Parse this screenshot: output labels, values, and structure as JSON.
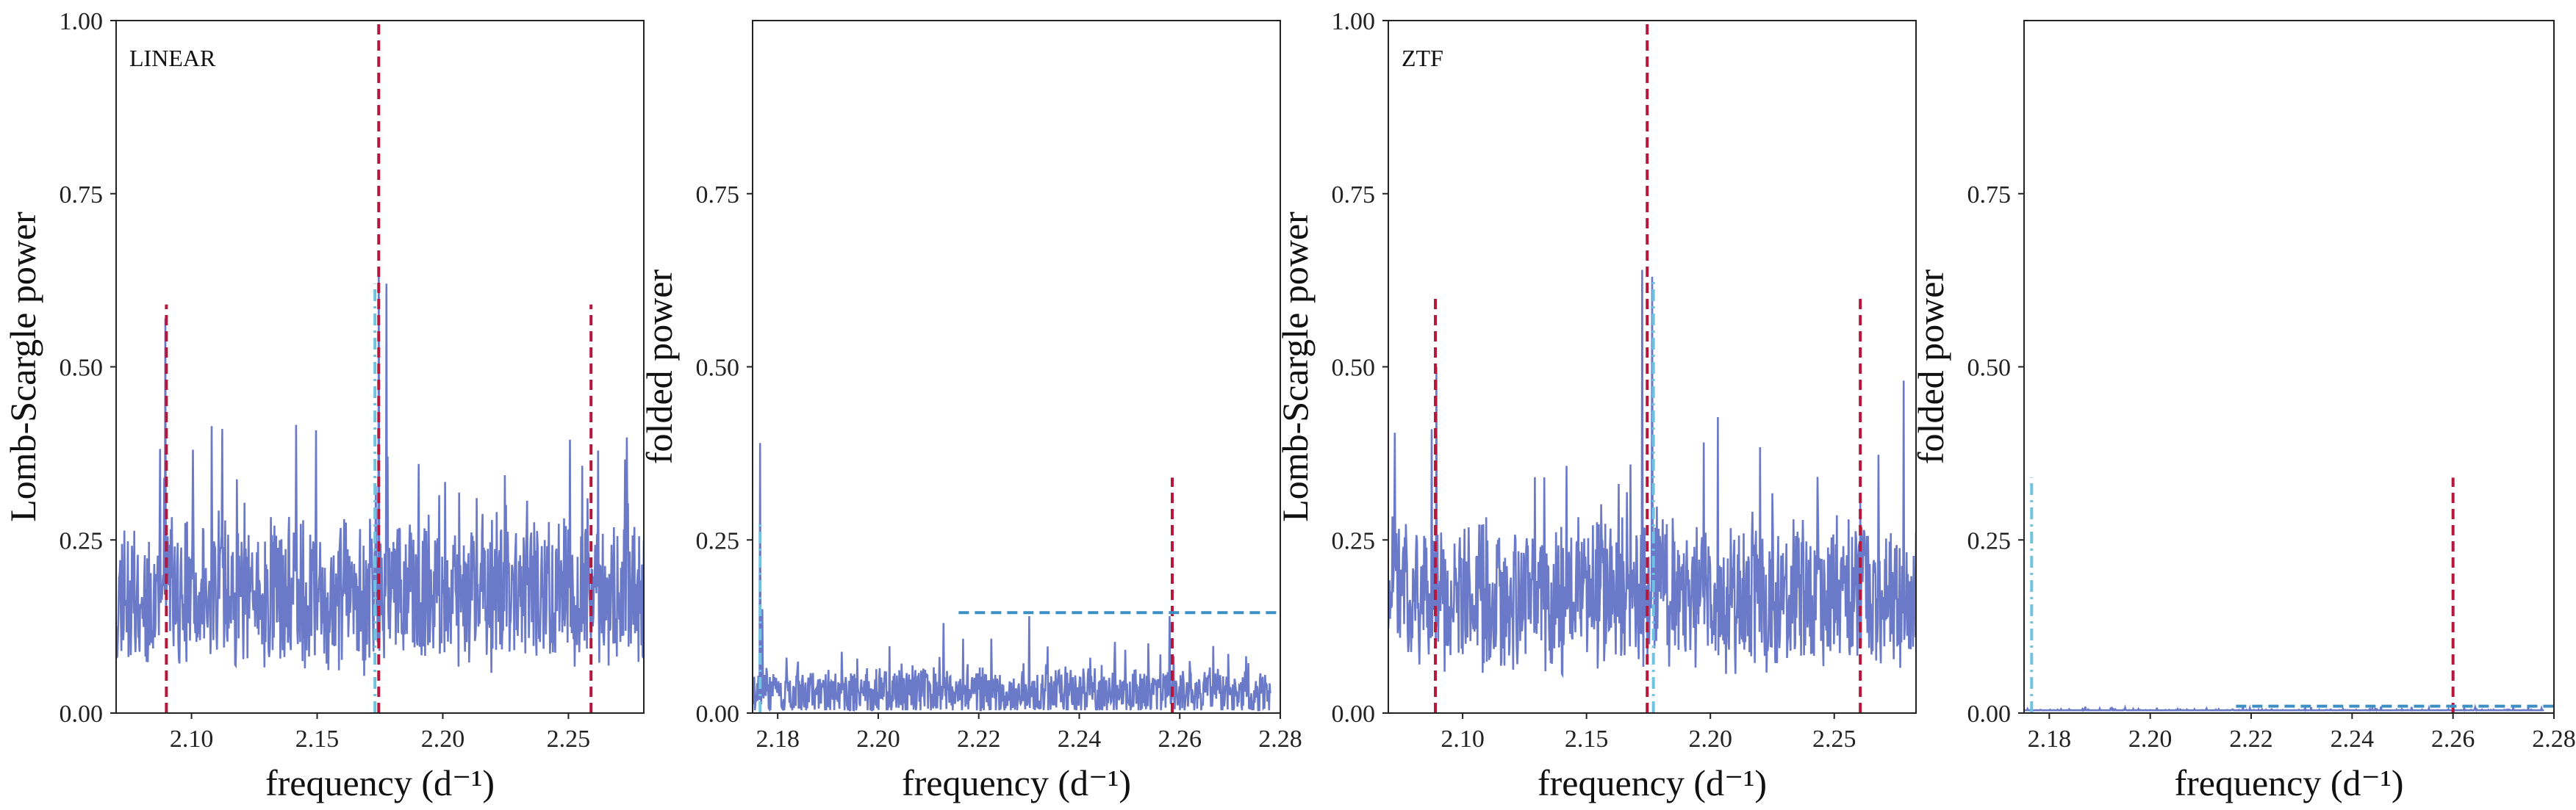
{
  "colors": {
    "periodogram": "#6a7ac8",
    "red_marker": "#b5173a",
    "blue_marker": "#3c8fc4",
    "cyan_marker": "#6ec4e0",
    "frame": "#222222"
  },
  "chart_data": [
    {
      "id": "linear-periodogram",
      "type": "line",
      "panel_label": "LINEAR",
      "xlabel": "frequency (d⁻¹)",
      "ylabel": "Lomb-Scargle power",
      "xlim": [
        2.07,
        2.28
      ],
      "ylim": [
        0,
        1.0
      ],
      "x_ticks": [
        2.1,
        2.15,
        2.2,
        2.25
      ],
      "x_tick_labels": [
        "2.10",
        "2.15",
        "2.20",
        "2.25"
      ],
      "y_ticks": [
        0.0,
        0.25,
        0.5,
        0.75,
        1.0
      ],
      "y_tick_labels": [
        "0.00",
        "0.25",
        "0.50",
        "0.75",
        "1.00"
      ],
      "grid": false,
      "noise": {
        "seed": 11,
        "base": 0.17,
        "spread": 0.12,
        "max": 0.47
      },
      "peaks": [
        {
          "x": 2.0895,
          "y": 0.57
        },
        {
          "x": 2.1745,
          "y": 0.64
        },
        {
          "x": 2.1775,
          "y": 0.62
        },
        {
          "x": 2.2575,
          "y": 0.31
        }
      ],
      "vlines": [
        {
          "x": 2.09,
          "y_top": 0.59,
          "color": "red_marker",
          "style": "dashed"
        },
        {
          "x": 2.1745,
          "y_top": 1.0,
          "color": "red_marker",
          "style": "dashed"
        },
        {
          "x": 2.259,
          "y_top": 0.59,
          "color": "red_marker",
          "style": "dashed"
        },
        {
          "x": 2.173,
          "y_top": 0.62,
          "color": "cyan_marker",
          "style": "dashdot"
        }
      ],
      "hlines": []
    },
    {
      "id": "linear-folded",
      "type": "line",
      "panel_label": "",
      "xlabel": "frequency (d⁻¹)",
      "ylabel": "folded power",
      "xlim": [
        2.175,
        2.28
      ],
      "ylim": [
        0,
        1.0
      ],
      "x_ticks": [
        2.18,
        2.2,
        2.22,
        2.24,
        2.26,
        2.28
      ],
      "x_tick_labels": [
        "2.18",
        "2.20",
        "2.22",
        "2.24",
        "2.26",
        "2.28"
      ],
      "y_ticks": [
        0.0,
        0.25,
        0.5,
        0.75
      ],
      "y_tick_labels": [
        "0.00",
        "0.25",
        "0.50",
        "0.75"
      ],
      "grid": false,
      "noise": {
        "seed": 23,
        "base": 0.03,
        "spread": 0.04,
        "max": 0.12,
        "x_end": 2.278
      },
      "peaks": [
        {
          "x": 2.1765,
          "y": 0.39
        },
        {
          "x": 2.177,
          "y": 0.15
        },
        {
          "x": 2.23,
          "y": 0.14
        },
        {
          "x": 2.213,
          "y": 0.13
        },
        {
          "x": 2.258,
          "y": 0.14
        }
      ],
      "vlines": [
        {
          "x": 2.1765,
          "y_top": 0.28,
          "color": "cyan_marker",
          "style": "dashdot"
        },
        {
          "x": 2.2585,
          "y_top": 0.34,
          "color": "red_marker",
          "style": "dashed"
        }
      ],
      "hlines": [
        {
          "y": 0.145,
          "x_start": 2.216,
          "x_end": 2.28,
          "color": "blue_marker",
          "style": "dashed"
        }
      ]
    },
    {
      "id": "ztf-periodogram",
      "type": "line",
      "panel_label": "ZTF",
      "xlabel": "frequency (d⁻¹)",
      "ylabel": "Lomb-Scargle power",
      "xlim": [
        2.07,
        2.283
      ],
      "ylim": [
        0,
        1.0
      ],
      "x_ticks": [
        2.1,
        2.15,
        2.2,
        2.25
      ],
      "x_tick_labels": [
        "2.10",
        "2.15",
        "2.20",
        "2.25"
      ],
      "y_ticks": [
        0.0,
        0.25,
        0.5,
        0.75,
        1.0
      ],
      "y_tick_labels": [
        "0.00",
        "0.25",
        "0.50",
        "0.75",
        "1.00"
      ],
      "grid": false,
      "noise": {
        "seed": 47,
        "base": 0.17,
        "spread": 0.12,
        "max": 0.47
      },
      "peaks": [
        {
          "x": 2.0875,
          "y": 0.41
        },
        {
          "x": 2.0895,
          "y": 0.5
        },
        {
          "x": 2.1725,
          "y": 0.64
        },
        {
          "x": 2.1765,
          "y": 0.63
        },
        {
          "x": 2.2605,
          "y": 0.31
        },
        {
          "x": 2.278,
          "y": 0.48
        }
      ],
      "vlines": [
        {
          "x": 2.089,
          "y_top": 0.6,
          "color": "red_marker",
          "style": "dashed"
        },
        {
          "x": 2.1745,
          "y_top": 1.0,
          "color": "red_marker",
          "style": "dashed"
        },
        {
          "x": 2.2605,
          "y_top": 0.6,
          "color": "red_marker",
          "style": "dashed"
        },
        {
          "x": 2.177,
          "y_top": 0.63,
          "color": "cyan_marker",
          "style": "dashdot"
        }
      ],
      "hlines": []
    },
    {
      "id": "ztf-folded",
      "type": "line",
      "panel_label": "",
      "xlabel": "frequency (d⁻¹)",
      "ylabel": "folded power",
      "xlim": [
        2.175,
        2.28
      ],
      "ylim": [
        0,
        1.0
      ],
      "x_ticks": [
        2.18,
        2.2,
        2.22,
        2.24,
        2.26,
        2.28
      ],
      "x_tick_labels": [
        "2.18",
        "2.20",
        "2.22",
        "2.24",
        "2.26",
        "2.28"
      ],
      "y_ticks": [
        0.0,
        0.25,
        0.5,
        0.75
      ],
      "y_tick_labels": [
        "0.00",
        "0.25",
        "0.50",
        "0.75"
      ],
      "grid": false,
      "noise": {
        "seed": 5,
        "base": 0.002,
        "spread": 0.004,
        "max": 0.01,
        "x_end": 2.278
      },
      "peaks": [],
      "vlines": [
        {
          "x": 2.1765,
          "y_top": 0.34,
          "color": "cyan_marker",
          "style": "dashdot"
        },
        {
          "x": 2.26,
          "y_top": 0.34,
          "color": "red_marker",
          "style": "dashed"
        }
      ],
      "hlines": [
        {
          "y": 0.01,
          "x_start": 2.217,
          "x_end": 2.28,
          "color": "blue_marker",
          "style": "dashed"
        }
      ]
    }
  ]
}
